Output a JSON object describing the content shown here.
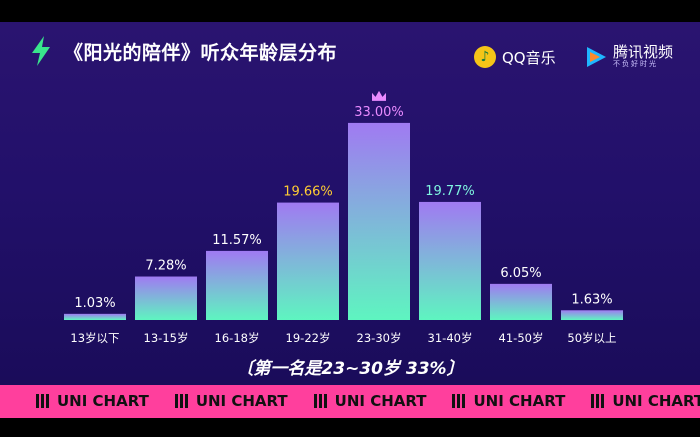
{
  "title": "《阳光的陪伴》听众年龄层分布",
  "logos": {
    "qq_music": "QQ音乐",
    "tencent_video": "腾讯视频",
    "tencent_video_slogan": "不负好时光"
  },
  "caption": "〔第一名是23~30岁 33%〕",
  "ticker": [
    "UNI CHART",
    "UNI CHART",
    "UNI CHART",
    "UNI CHART",
    "UNI CHART",
    "UNI CHART"
  ],
  "colors": {
    "background": "#22106a",
    "bar_top": "#9b7bf0",
    "bar_bottom": "#5ef5c0",
    "label_default": "#ffffff",
    "label_second": "#ffcc33",
    "label_first": "#e98bff",
    "label_third": "#7ff5e0",
    "ticker": "#ff3f9d"
  },
  "chart_data": {
    "type": "bar",
    "categories": [
      "13岁以下",
      "13-15岁",
      "16-18岁",
      "19-22岁",
      "23-30岁",
      "31-40岁",
      "41-50岁",
      "50岁以上"
    ],
    "values": [
      1.03,
      7.28,
      11.57,
      19.66,
      33.0,
      19.77,
      6.05,
      1.63
    ],
    "labels": [
      "1.03%",
      "7.28%",
      "11.57%",
      "19.66%",
      "33.00%",
      "19.77%",
      "6.05%",
      "1.63%"
    ],
    "ylim": [
      0,
      36
    ],
    "unit": "%",
    "top_icon": "crown-icon",
    "grid": false
  }
}
